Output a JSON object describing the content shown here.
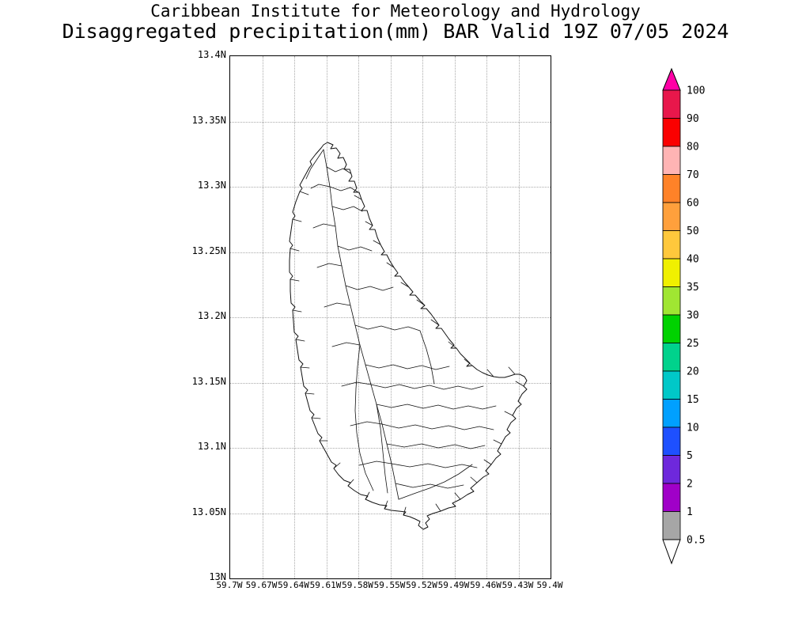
{
  "header": {
    "line1": "Caribbean Institute for Meteorology and Hydrology",
    "line2": "Disaggregated precipitation(mm) BAR Valid 19Z 07/05 2024"
  },
  "map": {
    "region_label": "Barbados watershed basins",
    "y_ticks": [
      "13.4N",
      "13.35N",
      "13.3N",
      "13.25N",
      "13.2N",
      "13.15N",
      "13.1N",
      "13.05N",
      "13N"
    ],
    "x_ticks": [
      "59.7W",
      "59.67W",
      "59.64W",
      "59.61W",
      "59.58W",
      "59.55W",
      "59.52W",
      "59.49W",
      "59.46W",
      "59.43W",
      "59.4W"
    ]
  },
  "colorbar": {
    "unit": "mm",
    "top_arrow_color": "#ff00a6",
    "bottom_arrow_color": "#ffffff",
    "bottom_label": "0.5",
    "segments_top_to_bottom": [
      {
        "label": "100",
        "color": "#e8174b"
      },
      {
        "label": "90",
        "color": "#fa0000"
      },
      {
        "label": "80",
        "color": "#ffb4b4"
      },
      {
        "label": "70",
        "color": "#ff8228"
      },
      {
        "label": "60",
        "color": "#ffa03c"
      },
      {
        "label": "50",
        "color": "#ffc83c"
      },
      {
        "label": "40",
        "color": "#f0f000"
      },
      {
        "label": "35",
        "color": "#a0e632"
      },
      {
        "label": "30",
        "color": "#00d200"
      },
      {
        "label": "25",
        "color": "#00d28c"
      },
      {
        "label": "20",
        "color": "#00c8c8"
      },
      {
        "label": "15",
        "color": "#00a0ff"
      },
      {
        "label": "10",
        "color": "#1e50ff"
      },
      {
        "label": "5",
        "color": "#6e28dc"
      },
      {
        "label": "2",
        "color": "#a000c8"
      },
      {
        "label": "1",
        "color": "#a6a6a6"
      }
    ]
  }
}
